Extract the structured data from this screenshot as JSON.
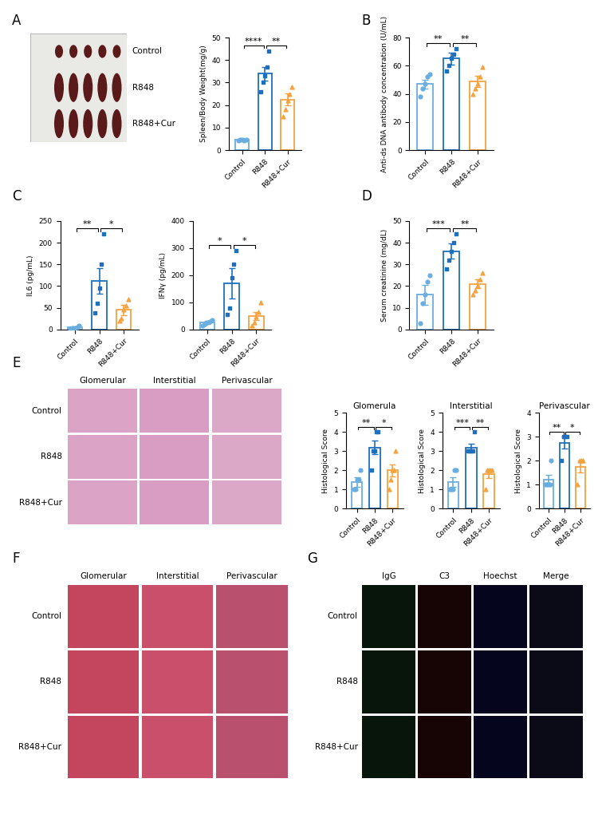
{
  "image_panels": [
    {
      "panel": "A",
      "type": "image_grid",
      "rows": [
        "Control",
        "R848",
        "R848+Cur"
      ],
      "colors": [
        "#e9e9e6"
      ]
    },
    {
      "panel": "E",
      "type": "image_grid",
      "rows": [
        "Control",
        "R848",
        "R848+Cur"
      ],
      "columns": [
        "Glomerular",
        "Interstitial",
        "Perivascular"
      ],
      "colors": [
        "#dba3c6",
        "#d99cc3",
        "#dca8c8"
      ]
    },
    {
      "panel": "F",
      "type": "image_grid",
      "rows": [
        "Control",
        "R848",
        "R848+Cur"
      ],
      "columns": [
        "Glomerular",
        "Interstitial",
        "Perivascular"
      ],
      "colors": [
        "#c4465e",
        "#c9506a",
        "#b8506e"
      ]
    },
    {
      "panel": "G",
      "type": "image_grid",
      "rows": [
        "Control",
        "R848",
        "R848+Cur"
      ],
      "columns": [
        "IgG",
        "C3",
        "Hoechst",
        "Merge"
      ],
      "colors": [
        "#07150a",
        "#170505",
        "#05061e",
        "#0b0b18"
      ]
    }
  ],
  "chart_data": [
    {
      "type": "bar",
      "panel": "A",
      "y_label": "Spleen/Body Weight(mg/g)",
      "categories": [
        "Control",
        "R848",
        "R848+Cur"
      ],
      "colors": [
        "#6aaee0",
        "#1f6fbf",
        "#f5a340"
      ],
      "values": [
        4.5,
        34,
        22.5
      ],
      "errors": [
        0.3,
        3,
        2.7
      ],
      "points": [
        {
          "marker": "circle",
          "values": [
            4.2,
            4.5,
            4.8,
            4.3,
            4.7
          ]
        },
        {
          "marker": "square",
          "values": [
            26,
            30,
            33,
            37,
            44
          ]
        },
        {
          "marker": "triangle",
          "values": [
            15,
            18,
            22,
            25,
            28
          ]
        }
      ],
      "ylim": [
        0,
        50
      ],
      "yticks": [
        0,
        10,
        20,
        30,
        40,
        50
      ],
      "significance": [
        {
          "from": 0,
          "to": 1,
          "label": "****"
        },
        {
          "from": 1,
          "to": 2,
          "label": "**"
        }
      ]
    },
    {
      "type": "bar",
      "panel": "B",
      "y_label": "Anti-ds DNA antibody concentration (U/mL)",
      "categories": [
        "Control",
        "R848",
        "R848+Cur"
      ],
      "colors": [
        "#6aaee0",
        "#1f6fbf",
        "#f5a340"
      ],
      "values": [
        47,
        65,
        49
      ],
      "errors": [
        3,
        4,
        4
      ],
      "points": [
        {
          "marker": "circle",
          "values": [
            38,
            44,
            47,
            52,
            54
          ]
        },
        {
          "marker": "square",
          "values": [
            56,
            60,
            65,
            68,
            72
          ]
        },
        {
          "marker": "triangle",
          "values": [
            40,
            44,
            47,
            52,
            59
          ]
        }
      ],
      "ylim": [
        0,
        80
      ],
      "yticks": [
        0,
        20,
        40,
        60,
        80
      ],
      "significance": [
        {
          "from": 0,
          "to": 1,
          "label": "**"
        },
        {
          "from": 1,
          "to": 2,
          "label": "**"
        }
      ]
    },
    {
      "type": "bar",
      "panel": "C",
      "y_label": "IL6 (pg/mL)",
      "categories": [
        "Control",
        "R848",
        "R848+Cur"
      ],
      "colors": [
        "#6aaee0",
        "#1f6fbf",
        "#f5a340"
      ],
      "values": [
        5,
        112,
        45
      ],
      "errors": [
        2,
        30,
        12
      ],
      "points": [
        {
          "marker": "circle",
          "values": [
            2,
            3,
            4,
            6,
            8
          ]
        },
        {
          "marker": "square",
          "values": [
            38,
            60,
            95,
            150,
            220
          ]
        },
        {
          "marker": "triangle",
          "values": [
            20,
            25,
            45,
            55,
            70
          ]
        }
      ],
      "ylim": [
        0,
        250
      ],
      "yticks": [
        0,
        50,
        100,
        150,
        200,
        250
      ],
      "significance": [
        {
          "from": 0,
          "to": 1,
          "label": "**"
        },
        {
          "from": 1,
          "to": 2,
          "label": "*"
        }
      ]
    },
    {
      "type": "bar",
      "panel": "C",
      "y_label": "IFNγ (pg/mL)",
      "categories": [
        "Control",
        "R848",
        "R848+Cur"
      ],
      "colors": [
        "#6aaee0",
        "#1f6fbf",
        "#f5a340"
      ],
      "values": [
        25,
        170,
        50
      ],
      "errors": [
        6,
        55,
        15
      ],
      "points": [
        {
          "marker": "circle",
          "values": [
            15,
            20,
            25,
            30,
            35
          ]
        },
        {
          "marker": "square",
          "values": [
            55,
            80,
            190,
            240,
            290
          ]
        },
        {
          "marker": "triangle",
          "values": [
            15,
            25,
            45,
            65,
            100
          ]
        }
      ],
      "ylim": [
        0,
        400
      ],
      "yticks": [
        0,
        100,
        200,
        300,
        400
      ],
      "significance": [
        {
          "from": 0,
          "to": 1,
          "label": "*"
        },
        {
          "from": 1,
          "to": 2,
          "label": "*"
        }
      ]
    },
    {
      "type": "bar",
      "panel": "D",
      "y_label": "Serum creatinine (mg/dL)",
      "categories": [
        "Control",
        "R848",
        "R848+Cur"
      ],
      "colors": [
        "#6aaee0",
        "#1f6fbf",
        "#f5a340"
      ],
      "values": [
        16,
        36,
        21
      ],
      "errors": [
        4.5,
        3.5,
        2
      ],
      "points": [
        {
          "marker": "circle",
          "values": [
            3,
            12,
            16,
            22,
            25
          ]
        },
        {
          "marker": "square",
          "values": [
            28,
            32,
            36,
            40,
            44
          ]
        },
        {
          "marker": "triangle",
          "values": [
            16,
            18,
            20,
            23,
            26
          ]
        }
      ],
      "ylim": [
        0,
        50
      ],
      "yticks": [
        0,
        10,
        20,
        30,
        40,
        50
      ],
      "significance": [
        {
          "from": 0,
          "to": 1,
          "label": "***"
        },
        {
          "from": 1,
          "to": 2,
          "label": "**"
        }
      ]
    },
    {
      "type": "bar",
      "panel": "E",
      "title": "Glomerula",
      "y_label": "Histological Score",
      "categories": [
        "Control",
        "R848",
        "R848+Cur"
      ],
      "colors": [
        "#6aaee0",
        "#1f6fbf",
        "#f5a340"
      ],
      "values": [
        1.4,
        3.2,
        2.0
      ],
      "errors": [
        0.25,
        0.37,
        0.3
      ],
      "points": [
        {
          "marker": "circle",
          "values": [
            1,
            1,
            1.5,
            1.5,
            2
          ]
        },
        {
          "marker": "square",
          "values": [
            2,
            3,
            3,
            4,
            4
          ]
        },
        {
          "marker": "triangle",
          "values": [
            1,
            1.5,
            2,
            2,
            3
          ]
        }
      ],
      "ylim": [
        0,
        5
      ],
      "yticks": [
        0,
        1,
        2,
        3,
        4,
        5
      ],
      "significance": [
        {
          "from": 0,
          "to": 1,
          "label": "**"
        },
        {
          "from": 1,
          "to": 2,
          "label": "*"
        }
      ]
    },
    {
      "type": "bar",
      "panel": "E",
      "title": "Interstitial",
      "y_label": "Histological Score",
      "categories": [
        "Control",
        "R848",
        "R848+Cur"
      ],
      "colors": [
        "#6aaee0",
        "#1f6fbf",
        "#f5a340"
      ],
      "values": [
        1.4,
        3.2,
        1.8
      ],
      "errors": [
        0.25,
        0.2,
        0.2
      ],
      "points": [
        {
          "marker": "circle",
          "values": [
            1,
            1,
            1,
            2,
            2
          ]
        },
        {
          "marker": "square",
          "values": [
            3,
            3,
            3,
            3,
            4
          ]
        },
        {
          "marker": "triangle",
          "values": [
            1,
            2,
            2,
            2,
            2
          ]
        }
      ],
      "ylim": [
        0,
        5
      ],
      "yticks": [
        0,
        1,
        2,
        3,
        4,
        5
      ],
      "significance": [
        {
          "from": 0,
          "to": 1,
          "label": "***"
        },
        {
          "from": 1,
          "to": 2,
          "label": "**"
        }
      ]
    },
    {
      "type": "bar",
      "panel": "E",
      "title": "Perivascular",
      "y_label": "Histological Score",
      "categories": [
        "Control",
        "R848",
        "R848+Cur"
      ],
      "colors": [
        "#6aaee0",
        "#1f6fbf",
        "#f5a340"
      ],
      "values": [
        1.2,
        2.75,
        1.75
      ],
      "errors": [
        0.2,
        0.25,
        0.25
      ],
      "points": [
        {
          "marker": "circle",
          "values": [
            1,
            1,
            1,
            1,
            2
          ]
        },
        {
          "marker": "square",
          "values": [
            2,
            3,
            3,
            3
          ]
        },
        {
          "marker": "triangle",
          "values": [
            1,
            2,
            2,
            2
          ]
        }
      ],
      "ylim": [
        0,
        4
      ],
      "yticks": [
        0,
        1,
        2,
        3,
        4
      ],
      "significance": [
        {
          "from": 0,
          "to": 1,
          "label": "**"
        },
        {
          "from": 1,
          "to": 2,
          "label": "*"
        }
      ]
    }
  ]
}
